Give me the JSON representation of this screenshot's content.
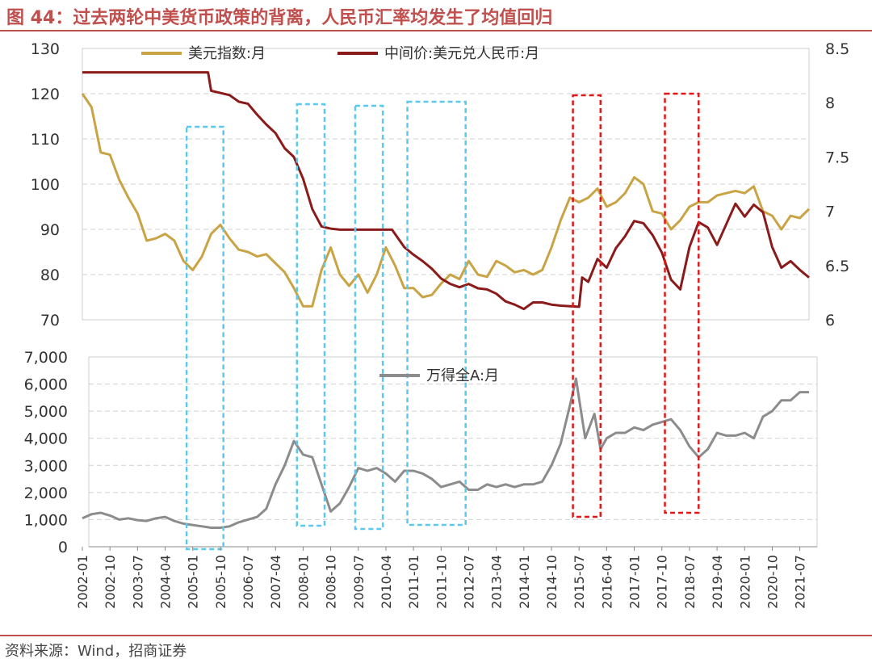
{
  "title": "图 44：过去两轮中美货币政策的背离，人民币汇率均发生了均值回归",
  "source": "资料来源：Wind，招商证券",
  "colors": {
    "title": "#c0504d",
    "usd_index": "#c9a444",
    "cny_mid": "#8b1a1a",
    "wind_a": "#8c8c8c",
    "box_blue": "#5bc8f0",
    "box_red": "#e01818"
  },
  "chart_data": [
    {
      "type": "line",
      "panel": "top",
      "ylim_left": [
        70,
        130
      ],
      "yticks_left": [
        "70",
        "80",
        "90",
        "100",
        "110",
        "120",
        "130"
      ],
      "ylim_right": [
        6,
        8.5
      ],
      "yticks_right": [
        "6",
        "6.5",
        "7",
        "7.5",
        "8",
        "8.5"
      ],
      "grid": true,
      "legend": "top",
      "series": [
        {
          "name": "美元指数:月",
          "axis": "left",
          "x": [
            "2002-01",
            "2002-04",
            "2002-07",
            "2002-10",
            "2003-01",
            "2003-04",
            "2003-07",
            "2003-10",
            "2004-01",
            "2004-04",
            "2004-07",
            "2004-10",
            "2005-01",
            "2005-04",
            "2005-07",
            "2005-10",
            "2006-01",
            "2006-04",
            "2006-07",
            "2006-10",
            "2007-01",
            "2007-04",
            "2007-07",
            "2007-10",
            "2008-01",
            "2008-04",
            "2008-07",
            "2008-10",
            "2009-01",
            "2009-04",
            "2009-07",
            "2009-10",
            "2010-01",
            "2010-04",
            "2010-07",
            "2010-10",
            "2011-01",
            "2011-04",
            "2011-07",
            "2011-10",
            "2012-01",
            "2012-04",
            "2012-07",
            "2012-10",
            "2013-01",
            "2013-04",
            "2013-07",
            "2013-10",
            "2014-01",
            "2014-04",
            "2014-07",
            "2014-10",
            "2015-01",
            "2015-04",
            "2015-07",
            "2015-10",
            "2016-01",
            "2016-04",
            "2016-07",
            "2016-10",
            "2017-01",
            "2017-04",
            "2017-07",
            "2017-10",
            "2018-01",
            "2018-04",
            "2018-07",
            "2018-10",
            "2019-01",
            "2019-04",
            "2019-07",
            "2019-10",
            "2020-01",
            "2020-04",
            "2020-07",
            "2020-10",
            "2021-01",
            "2021-04",
            "2021-07",
            "2021-10"
          ],
          "values": [
            120.0,
            117.0,
            107.0,
            106.5,
            101.0,
            97.0,
            93.5,
            87.5,
            88.0,
            89.0,
            87.5,
            83.0,
            81.0,
            84.0,
            89.0,
            91.0,
            88.0,
            85.5,
            85.0,
            84.0,
            84.5,
            82.5,
            80.5,
            77.0,
            73.0,
            73.0,
            81.0,
            86.0,
            80.0,
            77.5,
            80.0,
            76.0,
            80.0,
            86.0,
            82.0,
            77.0,
            77.0,
            75.0,
            75.5,
            78.0,
            80.0,
            79.0,
            83.0,
            80.0,
            79.5,
            83.0,
            82.0,
            80.5,
            81.0,
            80.0,
            81.0,
            86.0,
            92.0,
            97.0,
            96.0,
            97.0,
            99.0,
            95.0,
            96.0,
            98.0,
            101.5,
            100.0,
            94.0,
            93.5,
            90.0,
            92.0,
            95.0,
            96.0,
            96.0,
            97.5,
            98.0,
            98.5,
            98.0,
            99.5,
            94.0,
            93.0,
            90.0,
            93.0,
            92.5,
            94.5
          ]
        },
        {
          "name": "中间价:美元兑人民币:月",
          "axis": "right",
          "x": [
            "2002-01",
            "2002-07",
            "2003-01",
            "2003-07",
            "2004-01",
            "2004-07",
            "2005-01",
            "2005-06",
            "2005-07",
            "2005-10",
            "2006-01",
            "2006-04",
            "2006-07",
            "2006-10",
            "2007-01",
            "2007-04",
            "2007-07",
            "2007-10",
            "2008-01",
            "2008-04",
            "2008-07",
            "2008-10",
            "2009-01",
            "2009-07",
            "2010-01",
            "2010-06",
            "2010-07",
            "2010-10",
            "2011-01",
            "2011-04",
            "2011-07",
            "2011-10",
            "2012-01",
            "2012-04",
            "2012-07",
            "2012-10",
            "2013-01",
            "2013-04",
            "2013-07",
            "2013-10",
            "2014-01",
            "2014-04",
            "2014-07",
            "2014-10",
            "2015-01",
            "2015-07",
            "2015-08",
            "2015-10",
            "2016-01",
            "2016-04",
            "2016-07",
            "2016-10",
            "2017-01",
            "2017-04",
            "2017-07",
            "2017-10",
            "2018-01",
            "2018-04",
            "2018-07",
            "2018-10",
            "2019-01",
            "2019-04",
            "2019-07",
            "2019-10",
            "2020-01",
            "2020-04",
            "2020-07",
            "2020-10",
            "2021-01",
            "2021-04",
            "2021-07",
            "2021-10"
          ],
          "values": [
            8.28,
            8.28,
            8.28,
            8.28,
            8.28,
            8.28,
            8.28,
            8.28,
            8.11,
            8.09,
            8.07,
            8.01,
            7.99,
            7.89,
            7.8,
            7.72,
            7.58,
            7.5,
            7.3,
            7.02,
            6.86,
            6.84,
            6.83,
            6.83,
            6.83,
            6.83,
            6.79,
            6.67,
            6.6,
            6.54,
            6.47,
            6.38,
            6.33,
            6.3,
            6.33,
            6.29,
            6.28,
            6.24,
            6.17,
            6.14,
            6.1,
            6.16,
            6.16,
            6.14,
            6.13,
            6.12,
            6.39,
            6.35,
            6.56,
            6.48,
            6.66,
            6.77,
            6.91,
            6.89,
            6.78,
            6.62,
            6.37,
            6.28,
            6.67,
            6.9,
            6.85,
            6.69,
            6.88,
            7.07,
            6.95,
            7.06,
            6.99,
            6.67,
            6.48,
            6.54,
            6.46,
            6.39
          ]
        }
      ]
    },
    {
      "type": "line",
      "panel": "bottom",
      "ylim": [
        0,
        7000
      ],
      "yticks": [
        "0",
        "1,000",
        "2,000",
        "3,000",
        "4,000",
        "5,000",
        "6,000",
        "7,000"
      ],
      "grid": true,
      "legend": "top",
      "series": [
        {
          "name": "万得全A:月",
          "x": [
            "2002-01",
            "2002-04",
            "2002-07",
            "2002-10",
            "2003-01",
            "2003-04",
            "2003-07",
            "2003-10",
            "2004-01",
            "2004-04",
            "2004-07",
            "2004-10",
            "2005-01",
            "2005-04",
            "2005-07",
            "2005-10",
            "2006-01",
            "2006-04",
            "2006-07",
            "2006-10",
            "2007-01",
            "2007-04",
            "2007-07",
            "2007-10",
            "2008-01",
            "2008-04",
            "2008-07",
            "2008-10",
            "2009-01",
            "2009-04",
            "2009-07",
            "2009-10",
            "2010-01",
            "2010-04",
            "2010-07",
            "2010-10",
            "2011-01",
            "2011-04",
            "2011-07",
            "2011-10",
            "2012-01",
            "2012-04",
            "2012-07",
            "2012-10",
            "2013-01",
            "2013-04",
            "2013-07",
            "2013-10",
            "2014-01",
            "2014-04",
            "2014-07",
            "2014-10",
            "2015-01",
            "2015-04",
            "2015-06",
            "2015-09",
            "2015-12",
            "2016-02",
            "2016-04",
            "2016-07",
            "2016-10",
            "2017-01",
            "2017-04",
            "2017-07",
            "2017-10",
            "2018-01",
            "2018-04",
            "2018-07",
            "2018-10",
            "2019-01",
            "2019-04",
            "2019-07",
            "2019-10",
            "2020-01",
            "2020-04",
            "2020-07",
            "2020-10",
            "2021-01",
            "2021-04",
            "2021-07",
            "2021-10"
          ],
          "values": [
            1050,
            1200,
            1250,
            1150,
            1000,
            1050,
            980,
            950,
            1050,
            1100,
            950,
            850,
            800,
            750,
            700,
            700,
            750,
            900,
            1000,
            1100,
            1400,
            2300,
            3000,
            3900,
            3400,
            3300,
            2300,
            1300,
            1600,
            2200,
            2900,
            2800,
            2900,
            2700,
            2400,
            2800,
            2800,
            2700,
            2500,
            2200,
            2300,
            2400,
            2100,
            2100,
            2300,
            2200,
            2300,
            2200,
            2300,
            2300,
            2400,
            3000,
            3800,
            5200,
            6200,
            4000,
            4900,
            3600,
            4000,
            4200,
            4200,
            4400,
            4300,
            4500,
            4600,
            4700,
            4300,
            3700,
            3300,
            3600,
            4200,
            4100,
            4100,
            4200,
            4000,
            4800,
            5000,
            5400,
            5400,
            5700,
            5700
          ]
        }
      ]
    }
  ],
  "highlight_boxes": [
    {
      "kind": "blue",
      "from": "2004-11",
      "to": "2005-11",
      "span": "both"
    },
    {
      "kind": "blue",
      "from": "2007-11",
      "to": "2008-08",
      "span": "both"
    },
    {
      "kind": "blue",
      "from": "2009-06",
      "to": "2010-03",
      "span": "both"
    },
    {
      "kind": "blue",
      "from": "2010-11",
      "to": "2012-06",
      "span": "both"
    },
    {
      "kind": "red",
      "from": "2015-05",
      "to": "2016-02",
      "span": "both"
    },
    {
      "kind": "red",
      "from": "2017-11",
      "to": "2018-10",
      "span": "both"
    }
  ],
  "xticks": [
    "2002-01",
    "2002-10",
    "2003-07",
    "2004-04",
    "2005-01",
    "2005-10",
    "2006-07",
    "2007-04",
    "2008-01",
    "2008-10",
    "2009-07",
    "2010-04",
    "2011-01",
    "2011-10",
    "2012-07",
    "2013-04",
    "2014-01",
    "2014-10",
    "2015-07",
    "2016-04",
    "2017-01",
    "2017-10",
    "2018-07",
    "2019-04",
    "2020-01",
    "2020-10",
    "2021-07"
  ]
}
